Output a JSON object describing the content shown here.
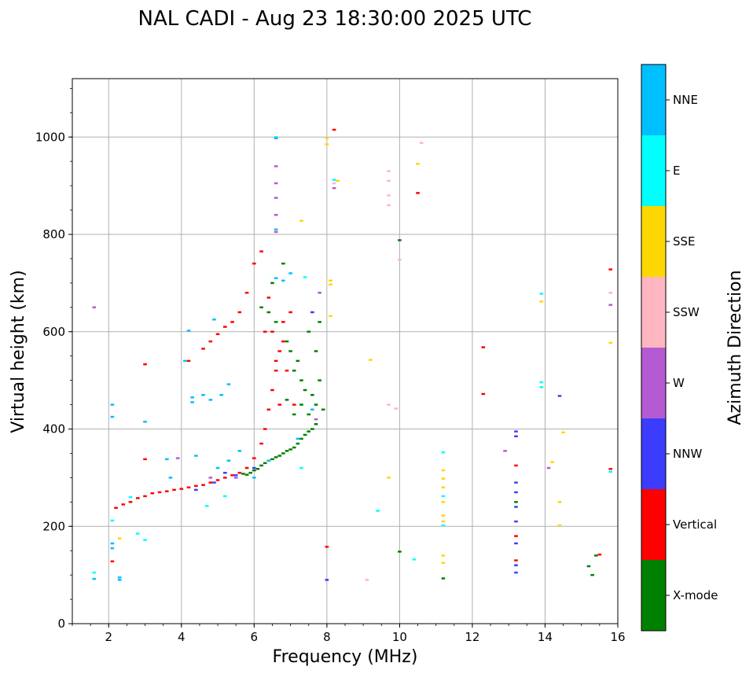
{
  "chart_data": {
    "type": "scatter",
    "title": "NAL CADI - Aug 23 18:30:00 2025 UTC",
    "xlabel": "Frequency (MHz)",
    "ylabel": "Virtual height (km)",
    "xlim": [
      1,
      16
    ],
    "ylim": [
      0,
      1120
    ],
    "xticks": [
      2,
      4,
      6,
      8,
      10,
      12,
      14,
      16
    ],
    "yticks": [
      0,
      200,
      400,
      600,
      800,
      1000
    ],
    "grid": true,
    "colorbar": {
      "title": "Azimuth Direction",
      "categories": [
        "X-mode",
        "Vertical",
        "NNW",
        "W",
        "SSW",
        "SSE",
        "E",
        "NNE"
      ],
      "colors": [
        "#008000",
        "#ff0000",
        "#3c3cff",
        "#b45ad2",
        "#ffb6c1",
        "#ffd700",
        "#00ffff",
        "#00bfff"
      ]
    },
    "series": [
      {
        "name": "X-mode",
        "points": [
          [
            5.7,
            308
          ],
          [
            5.8,
            306
          ],
          [
            5.9,
            310
          ],
          [
            6.0,
            315
          ],
          [
            6.1,
            318
          ],
          [
            6.2,
            325
          ],
          [
            6.3,
            330
          ],
          [
            6.4,
            335
          ],
          [
            6.5,
            338
          ],
          [
            6.6,
            342
          ],
          [
            6.7,
            345
          ],
          [
            6.8,
            350
          ],
          [
            6.9,
            355
          ],
          [
            7.0,
            358
          ],
          [
            7.1,
            362
          ],
          [
            7.2,
            370
          ],
          [
            7.3,
            380
          ],
          [
            7.4,
            388
          ],
          [
            7.5,
            395
          ],
          [
            7.6,
            400
          ],
          [
            7.7,
            410
          ],
          [
            6.2,
            650
          ],
          [
            6.4,
            640
          ],
          [
            6.5,
            700
          ],
          [
            6.6,
            620
          ],
          [
            6.8,
            740
          ],
          [
            6.9,
            580
          ],
          [
            7.0,
            560
          ],
          [
            7.1,
            520
          ],
          [
            7.2,
            540
          ],
          [
            7.3,
            500
          ],
          [
            7.4,
            480
          ],
          [
            7.5,
            600
          ],
          [
            7.6,
            470
          ],
          [
            7.7,
            450
          ],
          [
            7.8,
            620
          ],
          [
            7.9,
            440
          ],
          [
            7.5,
            430
          ],
          [
            6.9,
            460
          ],
          [
            7.1,
            430
          ],
          [
            7.3,
            450
          ],
          [
            7.8,
            500
          ],
          [
            7.7,
            560
          ],
          [
            10.0,
            788
          ],
          [
            10.0,
            148
          ],
          [
            11.2,
            93
          ],
          [
            15.2,
            118
          ],
          [
            15.3,
            100
          ],
          [
            15.4,
            140
          ],
          [
            13.2,
            250
          ]
        ]
      },
      {
        "name": "Vertical",
        "points": [
          [
            2.2,
            238
          ],
          [
            2.4,
            245
          ],
          [
            2.6,
            250
          ],
          [
            2.8,
            258
          ],
          [
            3.0,
            262
          ],
          [
            3.2,
            268
          ],
          [
            3.4,
            270
          ],
          [
            3.6,
            272
          ],
          [
            3.8,
            275
          ],
          [
            4.0,
            277
          ],
          [
            4.2,
            280
          ],
          [
            4.4,
            283
          ],
          [
            4.6,
            285
          ],
          [
            4.8,
            290
          ],
          [
            5.0,
            295
          ],
          [
            5.2,
            300
          ],
          [
            5.4,
            305
          ],
          [
            5.6,
            310
          ],
          [
            5.8,
            320
          ],
          [
            6.0,
            340
          ],
          [
            6.2,
            370
          ],
          [
            6.3,
            400
          ],
          [
            6.4,
            440
          ],
          [
            6.5,
            480
          ],
          [
            6.6,
            520
          ],
          [
            6.7,
            560
          ],
          [
            4.2,
            540
          ],
          [
            4.6,
            565
          ],
          [
            4.8,
            580
          ],
          [
            5.0,
            595
          ],
          [
            5.2,
            610
          ],
          [
            5.4,
            620
          ],
          [
            5.6,
            640
          ],
          [
            5.8,
            680
          ],
          [
            6.0,
            740
          ],
          [
            6.2,
            765
          ],
          [
            6.3,
            600
          ],
          [
            6.4,
            670
          ],
          [
            6.5,
            600
          ],
          [
            6.6,
            540
          ],
          [
            6.8,
            620
          ],
          [
            7.0,
            640
          ],
          [
            6.9,
            520
          ],
          [
            7.1,
            450
          ],
          [
            6.7,
            450
          ],
          [
            6.8,
            580
          ],
          [
            3.0,
            533
          ],
          [
            3.0,
            338
          ],
          [
            2.1,
            128
          ],
          [
            8.0,
            158
          ],
          [
            8.2,
            1015
          ],
          [
            10.5,
            885
          ],
          [
            12.3,
            568
          ],
          [
            12.3,
            472
          ],
          [
            13.2,
            180
          ],
          [
            13.2,
            130
          ],
          [
            13.2,
            325
          ],
          [
            15.5,
            142
          ],
          [
            15.8,
            728
          ],
          [
            15.8,
            318
          ]
        ]
      },
      {
        "name": "NNW",
        "points": [
          [
            13.2,
            290
          ],
          [
            13.2,
            270
          ],
          [
            13.2,
            240
          ],
          [
            13.2,
            210
          ],
          [
            13.2,
            165
          ],
          [
            13.2,
            120
          ],
          [
            13.2,
            105
          ],
          [
            13.2,
            395
          ],
          [
            13.2,
            385
          ],
          [
            14.4,
            468
          ],
          [
            4.4,
            275
          ],
          [
            4.9,
            290
          ],
          [
            5.5,
            305
          ],
          [
            6.0,
            320
          ],
          [
            7.6,
            640
          ],
          [
            8.0,
            90
          ],
          [
            6.6,
            998
          ],
          [
            5.2,
            310
          ]
        ]
      },
      {
        "name": "W",
        "points": [
          [
            1.6,
            650
          ],
          [
            6.6,
            940
          ],
          [
            6.6,
            905
          ],
          [
            6.6,
            875
          ],
          [
            6.6,
            840
          ],
          [
            6.6,
            805
          ],
          [
            7.8,
            680
          ],
          [
            7.7,
            420
          ],
          [
            12.9,
            355
          ],
          [
            14.1,
            320
          ],
          [
            15.8,
            655
          ],
          [
            3.9,
            340
          ],
          [
            4.8,
            300
          ],
          [
            5.5,
            300
          ],
          [
            8.2,
            895
          ]
        ]
      },
      {
        "name": "SSW",
        "points": [
          [
            8.2,
            905
          ],
          [
            9.7,
            930
          ],
          [
            9.7,
            910
          ],
          [
            9.7,
            880
          ],
          [
            9.7,
            860
          ],
          [
            9.7,
            450
          ],
          [
            9.9,
            442
          ],
          [
            10.0,
            748
          ],
          [
            9.1,
            90
          ],
          [
            10.6,
            988
          ],
          [
            15.8,
            680
          ]
        ]
      },
      {
        "name": "SSE",
        "points": [
          [
            8.1,
            705
          ],
          [
            8.1,
            697
          ],
          [
            8.1,
            632
          ],
          [
            8.0,
            985
          ],
          [
            8.0,
            998
          ],
          [
            8.3,
            910
          ],
          [
            9.2,
            542
          ],
          [
            9.7,
            300
          ],
          [
            10.5,
            945
          ],
          [
            11.2,
            315
          ],
          [
            11.2,
            298
          ],
          [
            11.2,
            280
          ],
          [
            11.2,
            250
          ],
          [
            11.2,
            222
          ],
          [
            11.2,
            210
          ],
          [
            11.2,
            140
          ],
          [
            11.2,
            125
          ],
          [
            7.3,
            828
          ],
          [
            13.9,
            662
          ],
          [
            14.2,
            332
          ],
          [
            14.4,
            250
          ],
          [
            14.4,
            202
          ],
          [
            14.5,
            393
          ],
          [
            15.8,
            577
          ],
          [
            2.3,
            175
          ]
        ]
      },
      {
        "name": "E",
        "points": [
          [
            8.2,
            912
          ],
          [
            9.4,
            232
          ],
          [
            10.4,
            132
          ],
          [
            11.2,
            352
          ],
          [
            11.2,
            262
          ],
          [
            11.2,
            202
          ],
          [
            13.9,
            678
          ],
          [
            13.9,
            496
          ],
          [
            13.9,
            486
          ],
          [
            15.8,
            312
          ],
          [
            7.4,
            712
          ],
          [
            1.6,
            105
          ],
          [
            2.8,
            185
          ],
          [
            3.0,
            172
          ],
          [
            2.1,
            212
          ],
          [
            5.2,
            262
          ],
          [
            4.7,
            242
          ],
          [
            7.3,
            320
          ],
          [
            6.6,
            1000
          ],
          [
            2.6,
            260
          ]
        ]
      },
      {
        "name": "NNE",
        "points": [
          [
            1.6,
            92
          ],
          [
            2.3,
            95
          ],
          [
            2.3,
            90
          ],
          [
            2.1,
            165
          ],
          [
            2.1,
            155
          ],
          [
            2.1,
            450
          ],
          [
            2.1,
            425
          ],
          [
            3.0,
            415
          ],
          [
            3.6,
            338
          ],
          [
            4.2,
            602
          ],
          [
            4.3,
            465
          ],
          [
            4.3,
            455
          ],
          [
            4.6,
            470
          ],
          [
            4.8,
            460
          ],
          [
            5.1,
            470
          ],
          [
            5.3,
            492
          ],
          [
            4.9,
            625
          ],
          [
            4.1,
            540
          ],
          [
            3.7,
            300
          ],
          [
            4.4,
            345
          ],
          [
            5.0,
            320
          ],
          [
            5.3,
            335
          ],
          [
            6.6,
            810
          ],
          [
            6.6,
            710
          ],
          [
            6.8,
            705
          ],
          [
            7.0,
            720
          ],
          [
            7.6,
            440
          ],
          [
            6.4,
            335
          ],
          [
            6.0,
            300
          ],
          [
            5.6,
            355
          ],
          [
            7.2,
            380
          ]
        ]
      }
    ]
  }
}
